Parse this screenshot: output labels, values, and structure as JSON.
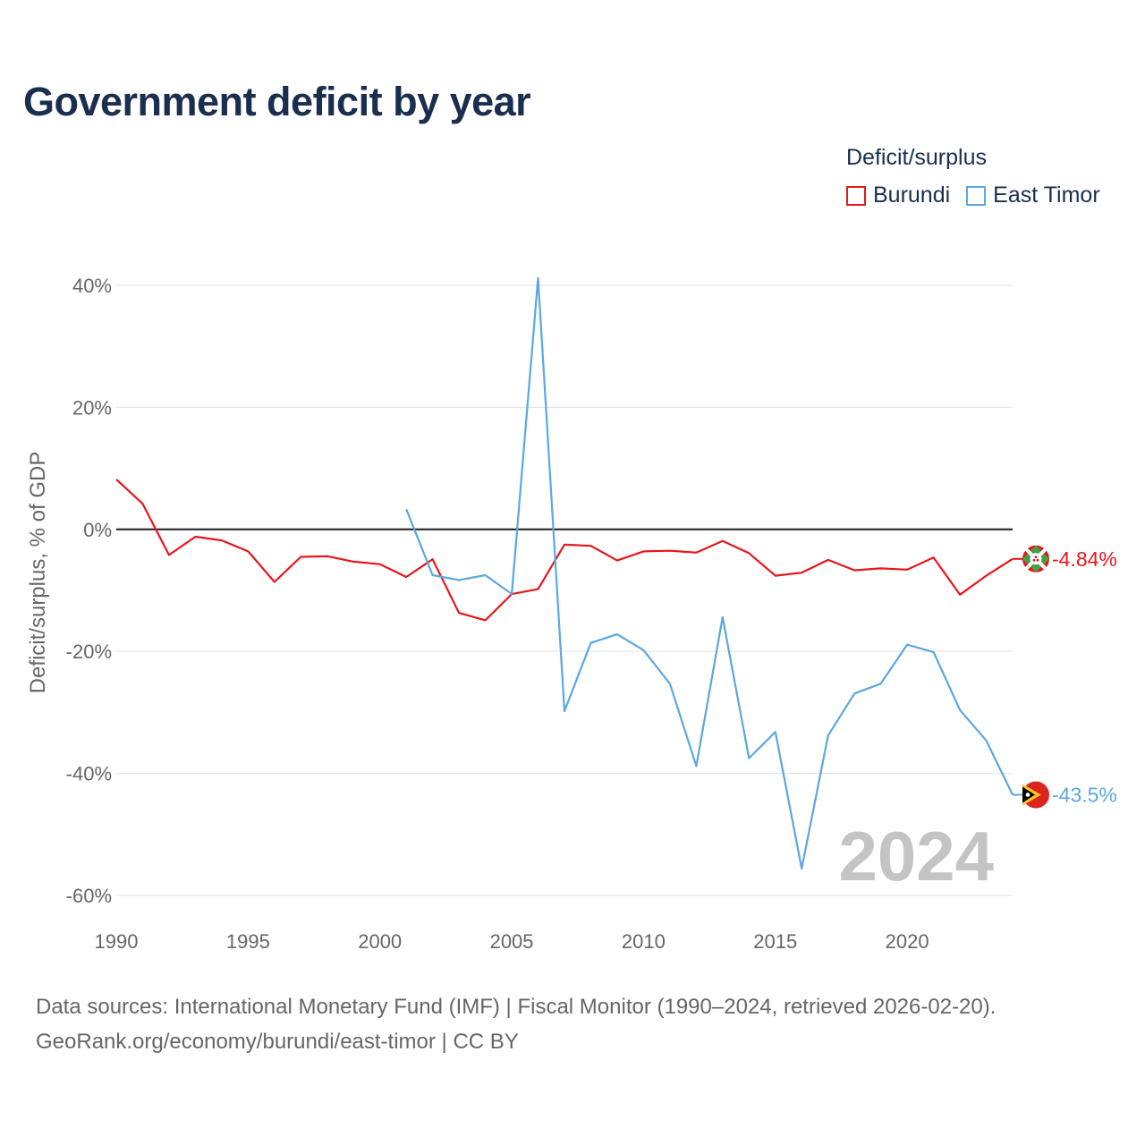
{
  "title": "Government deficit by year",
  "legend": {
    "title": "Deficit/surplus",
    "items": [
      {
        "label": "Burundi",
        "color": "#e8161b"
      },
      {
        "label": "East Timor",
        "color": "#5ba7e1"
      }
    ]
  },
  "source": {
    "line1": "Data sources: International Monetary Fund (IMF) | Fiscal Monitor (1990–2024, retrieved 2026-02-20).",
    "line2": "GeoRank.org/economy/burundi/east-timor | CC BY"
  },
  "watermark_year": "2024",
  "chart_data": {
    "type": "line",
    "title": "Government deficit by year",
    "xlabel": "",
    "ylabel": "Deficit/surplus, % of GDP",
    "xlim": [
      1990,
      2024
    ],
    "ylim": [
      -60,
      40
    ],
    "x_ticks": [
      1990,
      1995,
      2000,
      2005,
      2010,
      2015,
      2020
    ],
    "y_ticks": [
      40,
      20,
      0,
      -20,
      -40,
      -60
    ],
    "y_tick_labels": [
      "40%",
      "20%",
      "0%",
      "-20%",
      "-40%",
      "-60%"
    ],
    "series": [
      {
        "name": "Burundi",
        "color": "#e8161b",
        "end_label": "-4.84%",
        "x": [
          1990,
          1991,
          1992,
          1993,
          1994,
          1995,
          1996,
          1997,
          1998,
          1999,
          2000,
          2001,
          2002,
          2003,
          2004,
          2005,
          2006,
          2007,
          2008,
          2009,
          2010,
          2011,
          2012,
          2013,
          2014,
          2015,
          2016,
          2017,
          2018,
          2019,
          2020,
          2021,
          2022,
          2023,
          2024
        ],
        "values": [
          8.2,
          4.2,
          -4.2,
          -1.2,
          -1.8,
          -3.6,
          -8.6,
          -4.5,
          -4.4,
          -5.3,
          -5.7,
          -7.8,
          -4.9,
          -13.7,
          -14.9,
          -10.6,
          -9.8,
          -2.5,
          -2.7,
          -5.1,
          -3.6,
          -3.5,
          -3.8,
          -1.9,
          -3.9,
          -7.6,
          -7.1,
          -5.0,
          -6.7,
          -6.4,
          -6.6,
          -4.6,
          -10.7,
          -7.6,
          -4.84
        ]
      },
      {
        "name": "East Timor",
        "color": "#5ba7e1",
        "end_label": "-43.5%",
        "x": [
          2001,
          2002,
          2003,
          2004,
          2005,
          2006,
          2007,
          2008,
          2009,
          2010,
          2011,
          2012,
          2013,
          2014,
          2015,
          2016,
          2017,
          2018,
          2019,
          2020,
          2021,
          2022,
          2023,
          2024
        ],
        "values": [
          3.3,
          -7.5,
          -8.3,
          -7.5,
          -10.6,
          41.2,
          -29.8,
          -18.6,
          -17.2,
          -19.8,
          -25.3,
          -38.8,
          -14.4,
          -37.5,
          -33.2,
          -55.6,
          -33.8,
          -26.9,
          -25.3,
          -18.9,
          -20.1,
          -29.6,
          -34.6,
          -43.5
        ]
      }
    ]
  }
}
